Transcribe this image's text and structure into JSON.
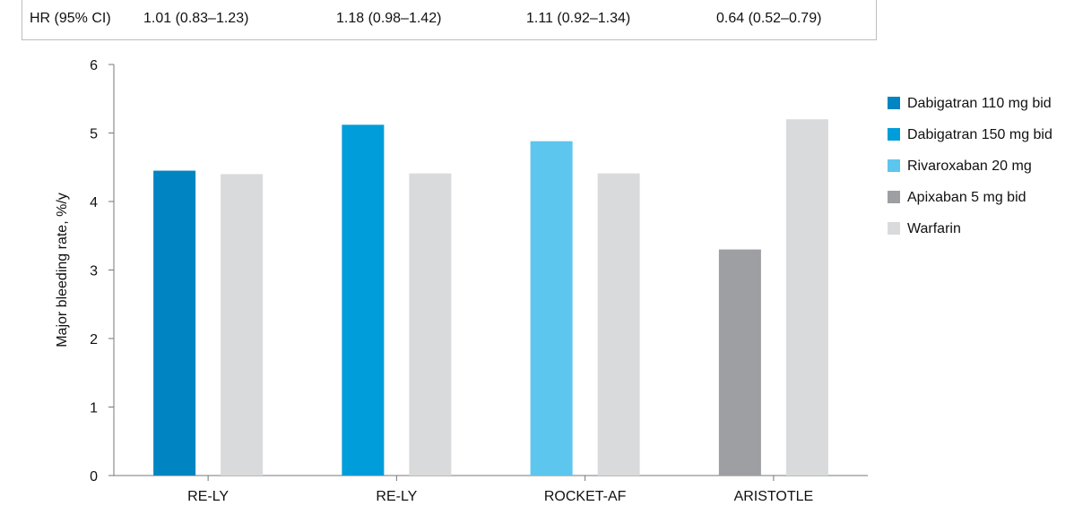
{
  "hr_row": {
    "label": "HR (95% CI)",
    "values": [
      "1.01 (0.83–1.23)",
      "1.18 (0.98–1.42)",
      "1.11 (0.92–1.34)",
      "0.64 (0.52–0.79)"
    ]
  },
  "chart_data": {
    "type": "bar",
    "ylabel": "Major bleeding rate, %/y",
    "ylim": [
      0,
      6
    ],
    "yticks": [
      0,
      1,
      2,
      3,
      4,
      5,
      6
    ],
    "categories": [
      "RE-LY",
      "RE-LY",
      "ROCKET-AF",
      "ARISTOTLE"
    ],
    "series": [
      {
        "name": "Dabigatran 110 mg bid",
        "color": "#0085C2",
        "values": [
          4.45,
          null,
          null,
          null
        ]
      },
      {
        "name": "Dabigatran 150 mg bid",
        "color": "#009DDB",
        "values": [
          null,
          5.12,
          null,
          null
        ]
      },
      {
        "name": "Rivaroxaban 20 mg",
        "color": "#5CC6EE",
        "values": [
          null,
          null,
          4.88,
          null
        ]
      },
      {
        "name": "Apixaban 5 mg bid",
        "color": "#9D9FA2",
        "values": [
          null,
          null,
          null,
          3.3
        ]
      },
      {
        "name": "Warfarin",
        "color": "#D9DADC",
        "values": [
          4.4,
          4.41,
          4.41,
          5.2
        ]
      }
    ],
    "legend_position": "right"
  }
}
